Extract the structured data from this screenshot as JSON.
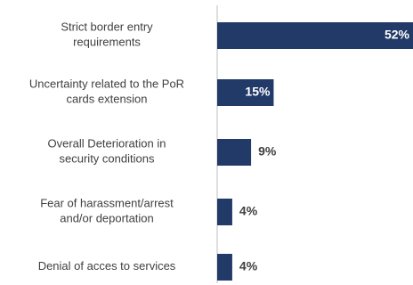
{
  "chart_data": {
    "type": "bar",
    "orientation": "horizontal",
    "categories": [
      [
        "Strict border entry",
        "requirements"
      ],
      [
        "Uncertainty related to the PoR",
        "cards extension"
      ],
      [
        "Overall Deterioration in",
        "security conditions"
      ],
      [
        "Fear of harassment/arrest",
        "and/or deportation"
      ],
      [
        "Denial of acces to services"
      ]
    ],
    "values": [
      52,
      15,
      9,
      4,
      4
    ],
    "value_labels": [
      "52%",
      "15%",
      "9%",
      "4%",
      "4%"
    ],
    "xlim": [
      0,
      52
    ],
    "grid": false,
    "bar_color": "#223a68",
    "label_color_inside": "#ffffff",
    "label_color_outside": "#404040",
    "axis_color": "#bfbfbf"
  }
}
